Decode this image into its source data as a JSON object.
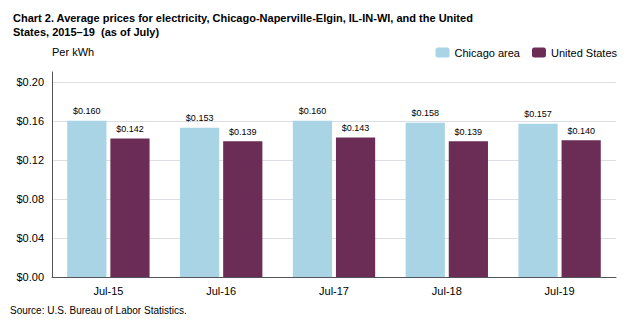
{
  "chart_data": {
    "type": "bar",
    "title": "Chart 2. Average prices for electricity, Chicago-Naperville-Elgin, IL-IN-WI, and the United\nStates, 2015–19  (as of July)",
    "ylabel": "Per kWh",
    "annotations": [
      "Source: U.S. Bureau of Labor Statistics."
    ],
    "categories": [
      "Jul-15",
      "Jul-16",
      "Jul-17",
      "Jul-18",
      "Jul-19"
    ],
    "series": [
      {
        "name": "Chicago area",
        "color": "#A8D4E6",
        "values": [
          0.16,
          0.153,
          0.16,
          0.158,
          0.157
        ],
        "value_labels": [
          "$0.160",
          "$0.153",
          "$0.160",
          "$0.158",
          "$0.157"
        ]
      },
      {
        "name": "United States",
        "color": "#6B2D55",
        "values": [
          0.142,
          0.139,
          0.143,
          0.139,
          0.14
        ],
        "value_labels": [
          "$0.142",
          "$0.139",
          "$0.143",
          "$0.139",
          "$0.140"
        ]
      }
    ],
    "ylim": [
      0.0,
      0.21
    ],
    "yticks": [
      {
        "value": 0.0,
        "label": "$0.00"
      },
      {
        "value": 0.04,
        "label": "$0.04"
      },
      {
        "value": 0.08,
        "label": "$0.08"
      },
      {
        "value": 0.12,
        "label": "$0.12"
      },
      {
        "value": 0.16,
        "label": "$0.16"
      },
      {
        "value": 0.2,
        "label": "$0.20"
      }
    ],
    "grid": true,
    "legend": "upper right",
    "data_labels": true
  }
}
